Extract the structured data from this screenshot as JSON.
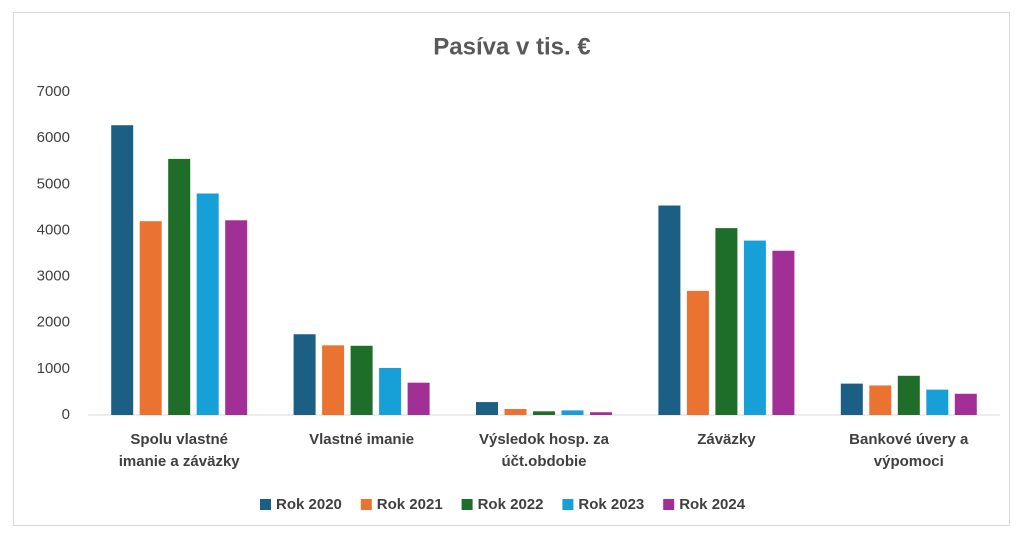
{
  "chart_data": {
    "type": "bar",
    "title": "Pasíva v tis. €",
    "categories": [
      "Spolu vlastné imanie a záväzky",
      "Vlastné imanie",
      "Výsledok hosp. za účt.obdobie",
      "Záväzky",
      "Bankové úvery a výpomoci"
    ],
    "series": [
      {
        "name": "Rok 2020",
        "color": "#1b5f85",
        "values": [
          6280,
          1750,
          280,
          4540,
          680
        ]
      },
      {
        "name": "Rok 2021",
        "color": "#ea7331",
        "values": [
          4200,
          1510,
          130,
          2690,
          640
        ]
      },
      {
        "name": "Rok 2022",
        "color": "#1e6e2a",
        "values": [
          5550,
          1500,
          80,
          4050,
          850
        ]
      },
      {
        "name": "Rok 2023",
        "color": "#17a0d8",
        "values": [
          4800,
          1020,
          100,
          3780,
          550
        ]
      },
      {
        "name": "Rok 2024",
        "color": "#a22f96",
        "values": [
          4220,
          700,
          60,
          3560,
          460
        ]
      }
    ],
    "ylim": [
      0,
      7000
    ],
    "yticks": [
      0,
      1000,
      2000,
      3000,
      4000,
      5000,
      6000,
      7000
    ],
    "grid": false,
    "legend": "bottom"
  }
}
